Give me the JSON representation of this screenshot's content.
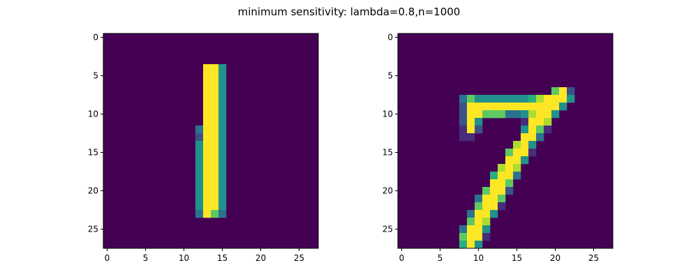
{
  "figure": {
    "suptitle": "minimum sensitivity: lambda=0.8,n=1000"
  },
  "colors": {
    "background": "#440154",
    "colormap": [
      "#440154",
      "#472d7b",
      "#3b528b",
      "#2c728e",
      "#21918c",
      "#28ae80",
      "#5ec962",
      "#addc30",
      "#fde725"
    ]
  },
  "chart_data": [
    {
      "type": "heatmap",
      "image_size": [
        28,
        28
      ],
      "value_range": [
        0,
        8
      ],
      "xticks": [
        0,
        5,
        10,
        15,
        20,
        25
      ],
      "yticks": [
        0,
        5,
        10,
        15,
        20,
        25
      ],
      "xlim": [
        -0.5,
        27.5
      ],
      "ylim": [
        27.5,
        -0.5
      ],
      "cells": [
        [
          13,
          4,
          8
        ],
        [
          14,
          4,
          8
        ],
        [
          15,
          4,
          4
        ],
        [
          13,
          5,
          8
        ],
        [
          14,
          5,
          8
        ],
        [
          15,
          5,
          4
        ],
        [
          13,
          6,
          8
        ],
        [
          14,
          6,
          8
        ],
        [
          15,
          6,
          4
        ],
        [
          13,
          7,
          8
        ],
        [
          14,
          7,
          8
        ],
        [
          15,
          7,
          4
        ],
        [
          13,
          8,
          8
        ],
        [
          14,
          8,
          8
        ],
        [
          15,
          8,
          4
        ],
        [
          13,
          9,
          8
        ],
        [
          14,
          9,
          8
        ],
        [
          15,
          9,
          4
        ],
        [
          13,
          10,
          8
        ],
        [
          14,
          10,
          8
        ],
        [
          15,
          10,
          4
        ],
        [
          13,
          11,
          8
        ],
        [
          14,
          11,
          8
        ],
        [
          15,
          11,
          4
        ],
        [
          12,
          12,
          3
        ],
        [
          13,
          12,
          8
        ],
        [
          14,
          12,
          8
        ],
        [
          15,
          12,
          4
        ],
        [
          12,
          13,
          2
        ],
        [
          13,
          13,
          8
        ],
        [
          14,
          13,
          8
        ],
        [
          15,
          13,
          4
        ],
        [
          12,
          14,
          4
        ],
        [
          13,
          14,
          8
        ],
        [
          14,
          14,
          8
        ],
        [
          15,
          14,
          4
        ],
        [
          12,
          15,
          4
        ],
        [
          13,
          15,
          8
        ],
        [
          14,
          15,
          8
        ],
        [
          15,
          15,
          4
        ],
        [
          12,
          16,
          4
        ],
        [
          13,
          16,
          8
        ],
        [
          14,
          16,
          8
        ],
        [
          15,
          16,
          4
        ],
        [
          12,
          17,
          4
        ],
        [
          13,
          17,
          8
        ],
        [
          14,
          17,
          8
        ],
        [
          15,
          17,
          4
        ],
        [
          12,
          18,
          4
        ],
        [
          13,
          18,
          8
        ],
        [
          14,
          18,
          8
        ],
        [
          15,
          18,
          4
        ],
        [
          12,
          19,
          4
        ],
        [
          13,
          19,
          8
        ],
        [
          14,
          19,
          8
        ],
        [
          15,
          19,
          4
        ],
        [
          12,
          20,
          4
        ],
        [
          13,
          20,
          8
        ],
        [
          14,
          20,
          8
        ],
        [
          15,
          20,
          4
        ],
        [
          12,
          21,
          4
        ],
        [
          13,
          21,
          8
        ],
        [
          14,
          21,
          8
        ],
        [
          15,
          21,
          4
        ],
        [
          12,
          22,
          4
        ],
        [
          13,
          22,
          8
        ],
        [
          14,
          22,
          8
        ],
        [
          15,
          22,
          4
        ],
        [
          12,
          23,
          3
        ],
        [
          13,
          23,
          8
        ],
        [
          14,
          23,
          6
        ],
        [
          15,
          23,
          3
        ]
      ]
    },
    {
      "type": "heatmap",
      "image_size": [
        28,
        28
      ],
      "value_range": [
        0,
        8
      ],
      "xticks": [
        0,
        5,
        10,
        15,
        20,
        25
      ],
      "yticks": [
        0,
        5,
        10,
        15,
        20,
        25
      ],
      "xlim": [
        -0.5,
        27.5
      ],
      "ylim": [
        27.5,
        -0.5
      ],
      "cells": [
        [
          20,
          7,
          6
        ],
        [
          21,
          7,
          8
        ],
        [
          22,
          7,
          2
        ],
        [
          8,
          8,
          3
        ],
        [
          9,
          8,
          6
        ],
        [
          10,
          8,
          4
        ],
        [
          11,
          8,
          4
        ],
        [
          12,
          8,
          4
        ],
        [
          13,
          8,
          4
        ],
        [
          14,
          8,
          4
        ],
        [
          15,
          8,
          4
        ],
        [
          16,
          8,
          4
        ],
        [
          17,
          8,
          5
        ],
        [
          18,
          8,
          7
        ],
        [
          19,
          8,
          8
        ],
        [
          20,
          8,
          8
        ],
        [
          21,
          8,
          8
        ],
        [
          22,
          8,
          4
        ],
        [
          8,
          9,
          2
        ],
        [
          9,
          9,
          8
        ],
        [
          10,
          9,
          8
        ],
        [
          11,
          9,
          8
        ],
        [
          12,
          9,
          8
        ],
        [
          13,
          9,
          8
        ],
        [
          14,
          9,
          8
        ],
        [
          15,
          9,
          8
        ],
        [
          16,
          9,
          8
        ],
        [
          17,
          9,
          8
        ],
        [
          18,
          9,
          8
        ],
        [
          19,
          9,
          8
        ],
        [
          20,
          9,
          8
        ],
        [
          21,
          9,
          4
        ],
        [
          8,
          10,
          2
        ],
        [
          9,
          10,
          8
        ],
        [
          10,
          10,
          8
        ],
        [
          11,
          10,
          6
        ],
        [
          12,
          10,
          6
        ],
        [
          13,
          10,
          6
        ],
        [
          14,
          10,
          3
        ],
        [
          15,
          10,
          3
        ],
        [
          16,
          10,
          4
        ],
        [
          17,
          10,
          7
        ],
        [
          18,
          10,
          8
        ],
        [
          19,
          10,
          8
        ],
        [
          20,
          10,
          4
        ],
        [
          8,
          11,
          2
        ],
        [
          9,
          11,
          8
        ],
        [
          10,
          11,
          4
        ],
        [
          16,
          11,
          1
        ],
        [
          17,
          11,
          8
        ],
        [
          18,
          11,
          8
        ],
        [
          19,
          11,
          7
        ],
        [
          8,
          12,
          1
        ],
        [
          9,
          12,
          8
        ],
        [
          10,
          12,
          2
        ],
        [
          16,
          12,
          4
        ],
        [
          17,
          12,
          8
        ],
        [
          18,
          12,
          6
        ],
        [
          19,
          12,
          1
        ],
        [
          8,
          13,
          1
        ],
        [
          9,
          13,
          1
        ],
        [
          16,
          13,
          8
        ],
        [
          17,
          13,
          8
        ],
        [
          18,
          13,
          3
        ],
        [
          15,
          14,
          7
        ],
        [
          16,
          14,
          8
        ],
        [
          17,
          14,
          4
        ],
        [
          14,
          15,
          6
        ],
        [
          15,
          15,
          8
        ],
        [
          16,
          15,
          8
        ],
        [
          17,
          15,
          1
        ],
        [
          14,
          16,
          8
        ],
        [
          15,
          16,
          8
        ],
        [
          16,
          16,
          4
        ],
        [
          13,
          17,
          7
        ],
        [
          14,
          17,
          8
        ],
        [
          15,
          17,
          7
        ],
        [
          12,
          18,
          5
        ],
        [
          13,
          18,
          8
        ],
        [
          14,
          18,
          8
        ],
        [
          15,
          18,
          3
        ],
        [
          12,
          19,
          8
        ],
        [
          13,
          19,
          8
        ],
        [
          14,
          19,
          6
        ],
        [
          11,
          20,
          6
        ],
        [
          12,
          20,
          8
        ],
        [
          13,
          20,
          8
        ],
        [
          14,
          20,
          2
        ],
        [
          10,
          21,
          3
        ],
        [
          11,
          21,
          8
        ],
        [
          12,
          21,
          8
        ],
        [
          13,
          21,
          6
        ],
        [
          10,
          22,
          6
        ],
        [
          11,
          22,
          8
        ],
        [
          12,
          22,
          8
        ],
        [
          13,
          22,
          1
        ],
        [
          9,
          23,
          3
        ],
        [
          10,
          23,
          8
        ],
        [
          11,
          23,
          8
        ],
        [
          12,
          23,
          4
        ],
        [
          9,
          24,
          6
        ],
        [
          10,
          24,
          8
        ],
        [
          11,
          24,
          7
        ],
        [
          8,
          25,
          3
        ],
        [
          9,
          25,
          8
        ],
        [
          10,
          25,
          8
        ],
        [
          11,
          25,
          4
        ],
        [
          8,
          26,
          6
        ],
        [
          9,
          26,
          8
        ],
        [
          10,
          26,
          8
        ],
        [
          11,
          26,
          1
        ],
        [
          8,
          27,
          5
        ],
        [
          9,
          27,
          8
        ],
        [
          10,
          27,
          4
        ]
      ]
    }
  ]
}
